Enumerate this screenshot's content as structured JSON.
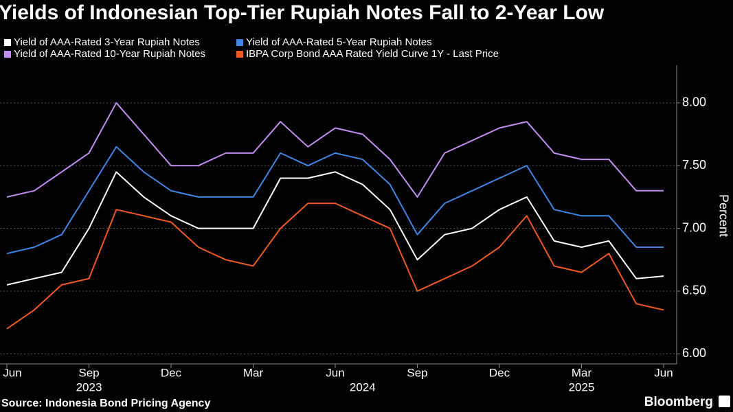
{
  "chart_data": {
    "type": "line",
    "title": "Yields of Indonesian Top-Tier Rupiah Notes Fall to 2-Year Low",
    "y_axis_label": "Percent",
    "source": "Source: Indonesia Bond Pricing Agency",
    "brand": "Bloomberg",
    "x": [
      "2023-06",
      "2023-07",
      "2023-08",
      "2023-09",
      "2023-10",
      "2023-11",
      "2023-12",
      "2024-01",
      "2024-02",
      "2024-03",
      "2024-04",
      "2024-05",
      "2024-06",
      "2024-07",
      "2024-08",
      "2024-09",
      "2024-10",
      "2024-11",
      "2024-12",
      "2025-01",
      "2025-02",
      "2025-03",
      "2025-04",
      "2025-05",
      "2025-06"
    ],
    "xlim": [
      "2023-06",
      "2025-06"
    ],
    "xticks": [
      {
        "value": "2023-06",
        "label": "Jun"
      },
      {
        "value": "2023-09",
        "label": "Sep"
      },
      {
        "value": "2023-12",
        "label": "Dec"
      },
      {
        "value": "2024-03",
        "label": "Mar"
      },
      {
        "value": "2024-06",
        "label": "Jun"
      },
      {
        "value": "2024-09",
        "label": "Sep"
      },
      {
        "value": "2024-12",
        "label": "Dec"
      },
      {
        "value": "2025-03",
        "label": "Mar"
      },
      {
        "value": "2025-06",
        "label": "Jun"
      }
    ],
    "x_year_labels": [
      {
        "value": "2023-09",
        "label": "2023"
      },
      {
        "value": "2024-07",
        "label": "2024"
      },
      {
        "value": "2025-03",
        "label": "2025"
      }
    ],
    "ylim": [
      5.92,
      8.3
    ],
    "yticks": [
      {
        "value": 6,
        "label": "6.00"
      },
      {
        "value": 6.5,
        "label": "6.50"
      },
      {
        "value": 7,
        "label": "7.00"
      },
      {
        "value": 7.5,
        "label": "7.50"
      },
      {
        "value": 8,
        "label": "8.00"
      }
    ],
    "grid": true,
    "series": [
      {
        "name": "Yield of AAA-Rated 3-Year Rupiah Notes",
        "color": "#ffffff",
        "values": [
          6.55,
          6.6,
          6.65,
          7.0,
          7.45,
          7.25,
          7.1,
          7.0,
          7.0,
          7.0,
          7.4,
          7.4,
          7.45,
          7.35,
          7.15,
          6.75,
          6.95,
          7.0,
          7.15,
          7.25,
          6.9,
          6.85,
          6.9,
          6.6,
          6.62
        ]
      },
      {
        "name": "Yield of AAA-Rated 5-Year Rupiah Notes",
        "color": "#3f87e5",
        "values": [
          6.8,
          6.85,
          6.95,
          7.3,
          7.65,
          7.45,
          7.3,
          7.25,
          7.25,
          7.25,
          7.6,
          7.5,
          7.6,
          7.55,
          7.35,
          6.95,
          7.2,
          7.3,
          7.4,
          7.5,
          7.15,
          7.1,
          7.1,
          6.85,
          6.85
        ]
      },
      {
        "name": "Yield of AAA-Rated 10-Year Rupiah Notes",
        "color": "#c38ef2",
        "values": [
          7.25,
          7.3,
          7.45,
          7.6,
          8.0,
          7.75,
          7.5,
          7.5,
          7.6,
          7.6,
          7.85,
          7.65,
          7.8,
          7.75,
          7.55,
          7.25,
          7.6,
          7.7,
          7.8,
          7.85,
          7.6,
          7.55,
          7.55,
          7.3,
          7.3
        ]
      },
      {
        "name": "IBPA Corp Bond AAA Rated Yield Curve 1Y - Last Price",
        "color": "#f0591f",
        "values": [
          6.2,
          6.35,
          6.55,
          6.6,
          7.15,
          7.1,
          7.05,
          6.85,
          6.75,
          6.7,
          7.0,
          7.2,
          7.2,
          7.1,
          7.0,
          6.5,
          6.6,
          6.7,
          6.85,
          7.1,
          6.7,
          6.65,
          6.8,
          6.4,
          6.35
        ]
      }
    ]
  }
}
